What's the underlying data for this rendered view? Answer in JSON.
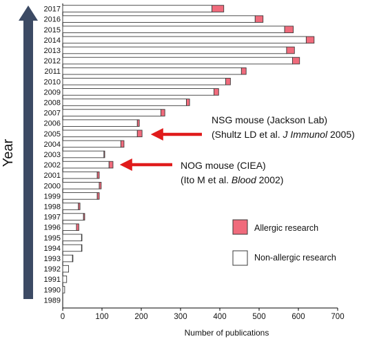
{
  "colors": {
    "allergic": "#f06b7c",
    "non_allergic": "#ffffff",
    "bar_stroke": "#3a3a3a",
    "arrow": "#e01b1b",
    "year_arrow": "#3c4a64"
  },
  "chart_data": {
    "type": "bar",
    "orientation": "horizontal",
    "stacked": true,
    "title": "",
    "xlabel": "Number of publications",
    "ylabel": "Year",
    "xlim": [
      0,
      700
    ],
    "xticks": [
      0,
      100,
      200,
      300,
      400,
      500,
      600,
      700
    ],
    "grid": false,
    "legend_position": "right",
    "categories": [
      "2017",
      "2016",
      "2015",
      "2014",
      "2013",
      "2012",
      "2011",
      "2010",
      "2009",
      "2008",
      "2007",
      "2006",
      "2005",
      "2004",
      "2003",
      "2002",
      "2001",
      "2000",
      "1999",
      "1998",
      "1997",
      "1996",
      "1995",
      "1994",
      "1993",
      "1992",
      "1991",
      "1990",
      "1989"
    ],
    "series": [
      {
        "name": "Non-allergic research",
        "values": [
          380,
          490,
          565,
          620,
          570,
          585,
          455,
          415,
          385,
          315,
          250,
          190,
          190,
          148,
          105,
          118,
          88,
          93,
          88,
          40,
          53,
          35,
          48,
          48,
          25,
          15,
          10,
          5,
          0
        ]
      },
      {
        "name": "Allergic research",
        "values": [
          30,
          20,
          22,
          20,
          20,
          18,
          12,
          12,
          12,
          8,
          10,
          5,
          12,
          8,
          2,
          10,
          5,
          5,
          5,
          4,
          3,
          6,
          1,
          1,
          1,
          0,
          0,
          0,
          0
        ]
      }
    ],
    "annotations": [
      {
        "target": "2005",
        "line1": "NSG mouse (Jackson Lab)",
        "line2_pre": "(Shultz LD et al. ",
        "line2_italic": "J Immunol",
        "line2_post": " 2005)"
      },
      {
        "target": "2002",
        "line1": "NOG mouse (CIEA)",
        "line2_pre": "(Ito M et al. ",
        "line2_italic": "Blood",
        "line2_post": " 2002)"
      }
    ]
  }
}
